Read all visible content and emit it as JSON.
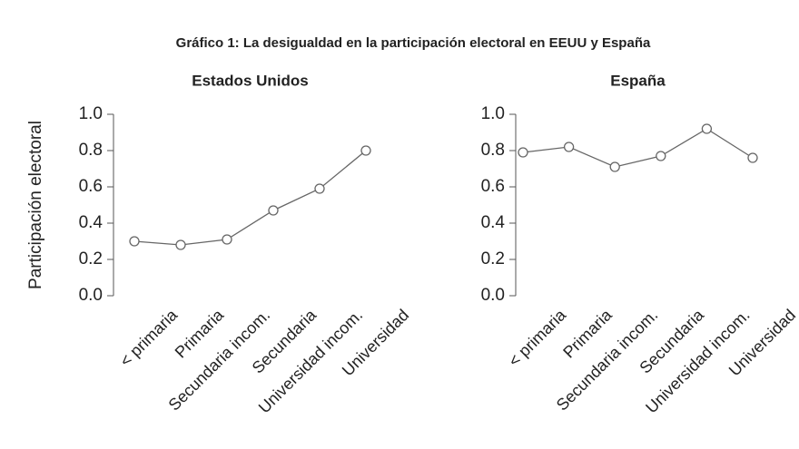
{
  "title": "Gráfico 1: La desigualdad en la participación electoral en EEUU y España",
  "chart_data": [
    {
      "type": "line",
      "title": "Estados Unidos",
      "ylabel": "Participación electoral",
      "categories": [
        "< primaria",
        "Primaria",
        "Secundaria incom.",
        "Secundaria",
        "Universidad incom.",
        "Universidad"
      ],
      "values": [
        0.3,
        0.28,
        0.31,
        0.47,
        0.59,
        0.8
      ],
      "color": "#666666",
      "ylim": [
        0,
        1
      ],
      "yticks": [
        {
          "value": 0,
          "label": "0.0"
        },
        0.2,
        0.4,
        0.6,
        0.8,
        {
          "value": 1,
          "label": "1.0"
        }
      ]
    },
    {
      "type": "line",
      "title": "España",
      "categories": [
        "< primaria",
        "Primaria",
        "Secundaria incom.",
        "Secundaria",
        "Universidad incom.",
        "Universidad"
      ],
      "values": [
        0.79,
        0.82,
        0.71,
        0.77,
        0.92,
        0.76
      ],
      "color": "#666666",
      "ylim": [
        0,
        1
      ],
      "yticks": [
        {
          "value": 0,
          "label": "0.0"
        },
        0.2,
        0.4,
        0.6,
        0.8,
        {
          "value": 1,
          "label": "1.0"
        }
      ]
    }
  ]
}
